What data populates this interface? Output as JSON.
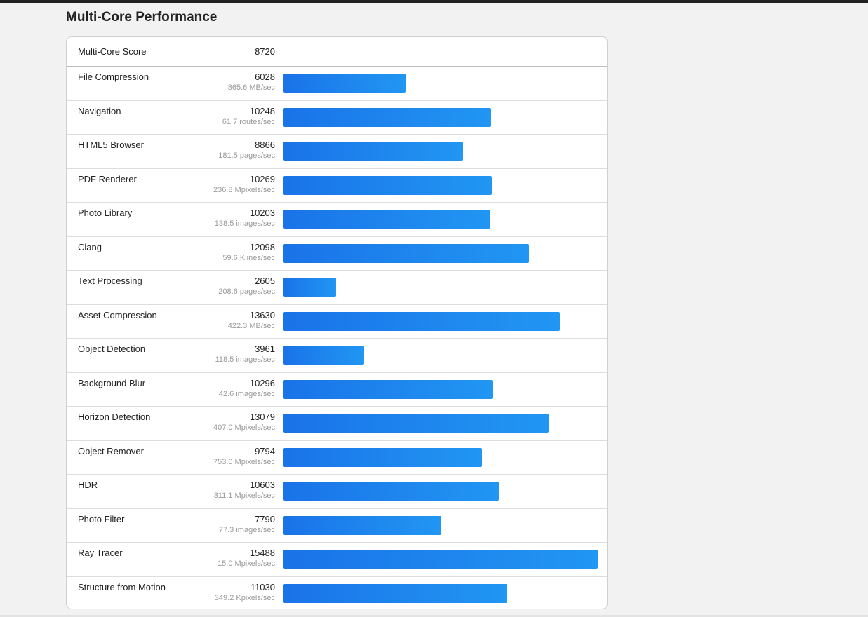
{
  "section": {
    "title": "Multi-Core Performance"
  },
  "score": {
    "label": "Multi-Core Score",
    "value": "8720"
  },
  "bar_scale_max": 15488,
  "benchmarks": [
    {
      "name": "File Compression",
      "score": "6028",
      "rate": "865.6 MB/sec",
      "value": 6028
    },
    {
      "name": "Navigation",
      "score": "10248",
      "rate": "61.7 routes/sec",
      "value": 10248
    },
    {
      "name": "HTML5 Browser",
      "score": "8866",
      "rate": "181.5 pages/sec",
      "value": 8866
    },
    {
      "name": "PDF Renderer",
      "score": "10269",
      "rate": "236.8 Mpixels/sec",
      "value": 10269
    },
    {
      "name": "Photo Library",
      "score": "10203",
      "rate": "138.5 images/sec",
      "value": 10203
    },
    {
      "name": "Clang",
      "score": "12098",
      "rate": "59.6 Klines/sec",
      "value": 12098
    },
    {
      "name": "Text Processing",
      "score": "2605",
      "rate": "208.6 pages/sec",
      "value": 2605
    },
    {
      "name": "Asset Compression",
      "score": "13630",
      "rate": "422.3 MB/sec",
      "value": 13630
    },
    {
      "name": "Object Detection",
      "score": "3961",
      "rate": "118.5 images/sec",
      "value": 3961
    },
    {
      "name": "Background Blur",
      "score": "10296",
      "rate": "42.6 images/sec",
      "value": 10296
    },
    {
      "name": "Horizon Detection",
      "score": "13079",
      "rate": "407.0 Mpixels/sec",
      "value": 13079
    },
    {
      "name": "Object Remover",
      "score": "9794",
      "rate": "753.0 Mpixels/sec",
      "value": 9794
    },
    {
      "name": "HDR",
      "score": "10603",
      "rate": "311.1 Mpixels/sec",
      "value": 10603
    },
    {
      "name": "Photo Filter",
      "score": "7790",
      "rate": "77.3 images/sec",
      "value": 7790
    },
    {
      "name": "Ray Tracer",
      "score": "15488",
      "rate": "15.0 Mpixels/sec",
      "value": 15488
    },
    {
      "name": "Structure from Motion",
      "score": "11030",
      "rate": "349.2 Kpixels/sec",
      "value": 11030
    }
  ],
  "colors": {
    "bar_start": "#1a73e8",
    "bar_end": "#2196f3"
  }
}
